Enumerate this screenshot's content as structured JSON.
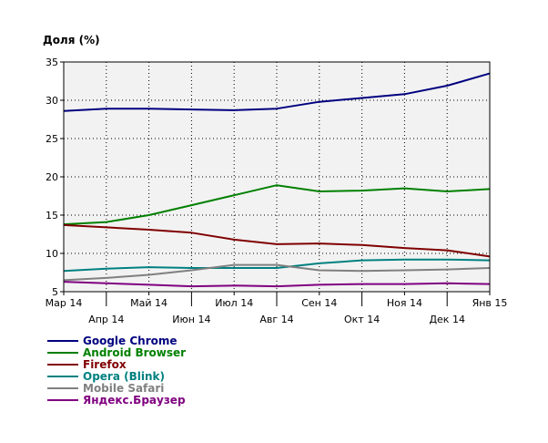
{
  "chart_data": {
    "type": "line",
    "title": "",
    "xlabel": "",
    "ylabel": "Доля (%)",
    "ylim": [
      5,
      35
    ],
    "yticks": [
      "5",
      "10",
      "15",
      "20",
      "25",
      "30",
      "35"
    ],
    "categories": [
      "Мар 14",
      "Апр 14",
      "Май 14",
      "Июн 14",
      "Июл 14",
      "Авг 14",
      "Сен 14",
      "Окт 14",
      "Ноя 14",
      "Дек 14",
      "Янв 15"
    ],
    "grid": true,
    "legend_position": "bottom-left",
    "series": [
      {
        "name": "Google Chrome",
        "color": "#000080",
        "values": [
          28.6,
          28.9,
          28.9,
          28.8,
          28.7,
          28.9,
          29.8,
          30.3,
          30.8,
          31.9,
          33.5
        ]
      },
      {
        "name": "Android Browser",
        "color": "#008000",
        "values": [
          13.8,
          14.1,
          15.0,
          16.3,
          17.6,
          18.9,
          18.1,
          18.2,
          18.5,
          18.1,
          18.4
        ]
      },
      {
        "name": "Firefox",
        "color": "#800000",
        "values": [
          13.7,
          13.4,
          13.1,
          12.7,
          11.8,
          11.2,
          11.3,
          11.1,
          10.7,
          10.4,
          9.6
        ]
      },
      {
        "name": "Opera (Blink)",
        "color": "#008080",
        "values": [
          7.7,
          8.0,
          8.2,
          8.1,
          8.1,
          8.1,
          8.7,
          9.1,
          9.2,
          9.2,
          9.1
        ]
      },
      {
        "name": "Mobile Safari",
        "color": "#808080",
        "values": [
          6.5,
          6.8,
          7.2,
          7.8,
          8.5,
          8.5,
          7.8,
          7.7,
          7.8,
          7.9,
          8.1
        ]
      },
      {
        "name": "Яндекс.Браузер",
        "color": "#800080",
        "values": [
          6.3,
          6.1,
          5.9,
          5.7,
          5.8,
          5.7,
          5.9,
          6.0,
          6.0,
          6.1,
          6.0
        ]
      }
    ]
  }
}
